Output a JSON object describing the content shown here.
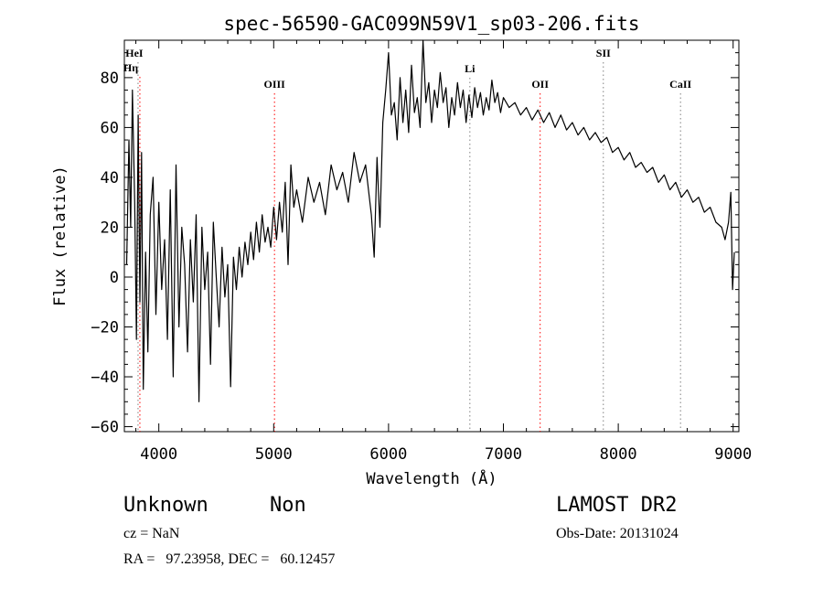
{
  "chart_data": {
    "type": "line",
    "title": "spec-56590-GAC099N59V1_sp03-206.fits",
    "xlabel": "Wavelength (Å)",
    "ylabel": "Flux (relative)",
    "xlim": [
      3700,
      9050
    ],
    "ylim": [
      -62,
      95
    ],
    "x_ticks": [
      4000,
      5000,
      6000,
      7000,
      8000,
      9000
    ],
    "y_ticks": [
      -60,
      -40,
      -20,
      0,
      20,
      40,
      60,
      80
    ],
    "grid": false,
    "series": [
      {
        "color": "#000000",
        "points": [
          [
            3720,
            5
          ],
          [
            3740,
            55
          ],
          [
            3755,
            20
          ],
          [
            3770,
            75
          ],
          [
            3790,
            30
          ],
          [
            3805,
            -25
          ],
          [
            3820,
            65
          ],
          [
            3835,
            -10
          ],
          [
            3850,
            50
          ],
          [
            3865,
            -45
          ],
          [
            3885,
            10
          ],
          [
            3905,
            -30
          ],
          [
            3925,
            25
          ],
          [
            3950,
            40
          ],
          [
            3975,
            -15
          ],
          [
            4000,
            30
          ],
          [
            4025,
            -5
          ],
          [
            4050,
            15
          ],
          [
            4075,
            -25
          ],
          [
            4100,
            35
          ],
          [
            4125,
            -40
          ],
          [
            4150,
            45
          ],
          [
            4175,
            -20
          ],
          [
            4200,
            20
          ],
          [
            4225,
            5
          ],
          [
            4250,
            -30
          ],
          [
            4275,
            15
          ],
          [
            4300,
            -10
          ],
          [
            4325,
            25
          ],
          [
            4350,
            -50
          ],
          [
            4375,
            20
          ],
          [
            4400,
            -5
          ],
          [
            4425,
            10
          ],
          [
            4450,
            -35
          ],
          [
            4475,
            22
          ],
          [
            4500,
            0
          ],
          [
            4525,
            -20
          ],
          [
            4550,
            12
          ],
          [
            4575,
            -8
          ],
          [
            4600,
            5
          ],
          [
            4625,
            -44
          ],
          [
            4650,
            8
          ],
          [
            4675,
            -5
          ],
          [
            4700,
            12
          ],
          [
            4725,
            0
          ],
          [
            4750,
            14
          ],
          [
            4775,
            5
          ],
          [
            4800,
            18
          ],
          [
            4825,
            7
          ],
          [
            4850,
            22
          ],
          [
            4875,
            10
          ],
          [
            4900,
            25
          ],
          [
            4925,
            14
          ],
          [
            4950,
            20
          ],
          [
            4975,
            12
          ],
          [
            5000,
            28
          ],
          [
            5025,
            15
          ],
          [
            5050,
            30
          ],
          [
            5075,
            18
          ],
          [
            5100,
            38
          ],
          [
            5125,
            5
          ],
          [
            5150,
            45
          ],
          [
            5175,
            28
          ],
          [
            5200,
            35
          ],
          [
            5250,
            22
          ],
          [
            5300,
            40
          ],
          [
            5350,
            30
          ],
          [
            5400,
            38
          ],
          [
            5450,
            25
          ],
          [
            5500,
            45
          ],
          [
            5550,
            35
          ],
          [
            5600,
            42
          ],
          [
            5650,
            30
          ],
          [
            5700,
            50
          ],
          [
            5750,
            38
          ],
          [
            5800,
            45
          ],
          [
            5850,
            25
          ],
          [
            5875,
            8
          ],
          [
            5900,
            48
          ],
          [
            5925,
            20
          ],
          [
            5950,
            62
          ],
          [
            5975,
            75
          ],
          [
            6000,
            90
          ],
          [
            6025,
            65
          ],
          [
            6050,
            70
          ],
          [
            6075,
            55
          ],
          [
            6100,
            80
          ],
          [
            6125,
            62
          ],
          [
            6150,
            75
          ],
          [
            6175,
            58
          ],
          [
            6200,
            85
          ],
          [
            6225,
            66
          ],
          [
            6250,
            72
          ],
          [
            6275,
            60
          ],
          [
            6300,
            95
          ],
          [
            6325,
            70
          ],
          [
            6350,
            78
          ],
          [
            6375,
            62
          ],
          [
            6400,
            75
          ],
          [
            6425,
            68
          ],
          [
            6450,
            82
          ],
          [
            6475,
            70
          ],
          [
            6500,
            76
          ],
          [
            6525,
            60
          ],
          [
            6550,
            72
          ],
          [
            6575,
            65
          ],
          [
            6600,
            78
          ],
          [
            6625,
            68
          ],
          [
            6650,
            75
          ],
          [
            6675,
            62
          ],
          [
            6700,
            73
          ],
          [
            6725,
            64
          ],
          [
            6750,
            76
          ],
          [
            6775,
            68
          ],
          [
            6800,
            74
          ],
          [
            6825,
            65
          ],
          [
            6850,
            72
          ],
          [
            6875,
            67
          ],
          [
            6900,
            79
          ],
          [
            6925,
            70
          ],
          [
            6950,
            74
          ],
          [
            6975,
            66
          ],
          [
            7000,
            72
          ],
          [
            7050,
            68
          ],
          [
            7100,
            70
          ],
          [
            7150,
            65
          ],
          [
            7200,
            68
          ],
          [
            7250,
            63
          ],
          [
            7300,
            67
          ],
          [
            7350,
            62
          ],
          [
            7400,
            66
          ],
          [
            7450,
            60
          ],
          [
            7500,
            65
          ],
          [
            7550,
            59
          ],
          [
            7600,
            62
          ],
          [
            7650,
            57
          ],
          [
            7700,
            60
          ],
          [
            7750,
            55
          ],
          [
            7800,
            58
          ],
          [
            7850,
            54
          ],
          [
            7900,
            56
          ],
          [
            7950,
            50
          ],
          [
            8000,
            52
          ],
          [
            8050,
            47
          ],
          [
            8100,
            50
          ],
          [
            8150,
            44
          ],
          [
            8200,
            46
          ],
          [
            8250,
            42
          ],
          [
            8300,
            44
          ],
          [
            8350,
            38
          ],
          [
            8400,
            41
          ],
          [
            8450,
            35
          ],
          [
            8500,
            38
          ],
          [
            8550,
            32
          ],
          [
            8600,
            35
          ],
          [
            8650,
            30
          ],
          [
            8700,
            32
          ],
          [
            8750,
            26
          ],
          [
            8800,
            28
          ],
          [
            8850,
            22
          ],
          [
            8900,
            20
          ],
          [
            8930,
            15
          ],
          [
            8960,
            22
          ],
          [
            8980,
            34
          ],
          [
            8995,
            -5
          ],
          [
            9010,
            10
          ]
        ]
      }
    ],
    "line_markers": [
      {
        "label": "HeI",
        "x": 3819,
        "color": "#808080"
      },
      {
        "label": "Hη",
        "x": 3835,
        "color": "#ff0000"
      },
      {
        "label": "OIII",
        "x": 5007,
        "color": "#ff0000"
      },
      {
        "label": "Li",
        "x": 6708,
        "color": "#808080"
      },
      {
        "label": "OII",
        "x": 7320,
        "color": "#ff0000"
      },
      {
        "label": "SII",
        "x": 7870,
        "color": "#808080"
      },
      {
        "label": "CaII",
        "x": 8542,
        "color": "#808080"
      }
    ]
  },
  "info": {
    "class": "Unknown",
    "subclass": "Non",
    "survey": "LAMOST DR2",
    "cz": "cz = NaN",
    "obs_date": "Obs-Date: 20131024",
    "radec": "RA =   97.23958, DEC =   60.12457"
  }
}
